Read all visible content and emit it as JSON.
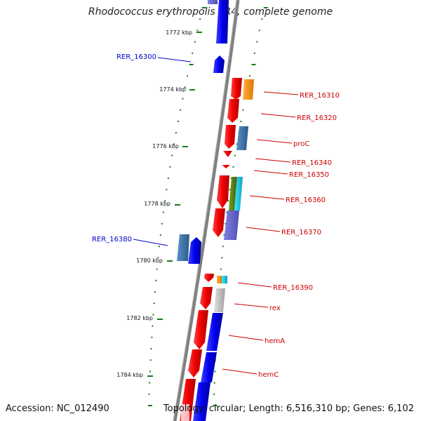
{
  "title": "Rhodococcus erythropolis PR4, complete genome",
  "footer": {
    "accession": "Accession: NC_012490",
    "summary": "Topology: circular; Length: 6,516,310 bp; Genes: 6,102"
  },
  "colors": {
    "forward_label": "#0000cc",
    "reverse_label": "#cc0000",
    "backbone": "#808080",
    "tick": "#1a7a1a"
  },
  "kbp_ticks": [
    "1772 kbp",
    "1774 kbp",
    "1776 kbp",
    "1778 kbp",
    "1780 kbp",
    "1782 kbp",
    "1784 kbp"
  ],
  "gene_labels": [
    {
      "text": "RER_16300",
      "strand": "forward"
    },
    {
      "text": "RER_16310",
      "strand": "reverse"
    },
    {
      "text": "RER_16320",
      "strand": "reverse"
    },
    {
      "text": "proC",
      "strand": "reverse"
    },
    {
      "text": "RER_16340",
      "strand": "reverse"
    },
    {
      "text": "RER_16350",
      "strand": "reverse"
    },
    {
      "text": "RER_16360",
      "strand": "reverse"
    },
    {
      "text": "RER_16370",
      "strand": "reverse"
    },
    {
      "text": "RER_16380",
      "strand": "forward"
    },
    {
      "text": "RER_16390",
      "strand": "reverse"
    },
    {
      "text": "rex",
      "strand": "reverse"
    },
    {
      "text": "hemA",
      "strand": "reverse"
    },
    {
      "text": "hemC",
      "strand": "reverse"
    }
  ]
}
